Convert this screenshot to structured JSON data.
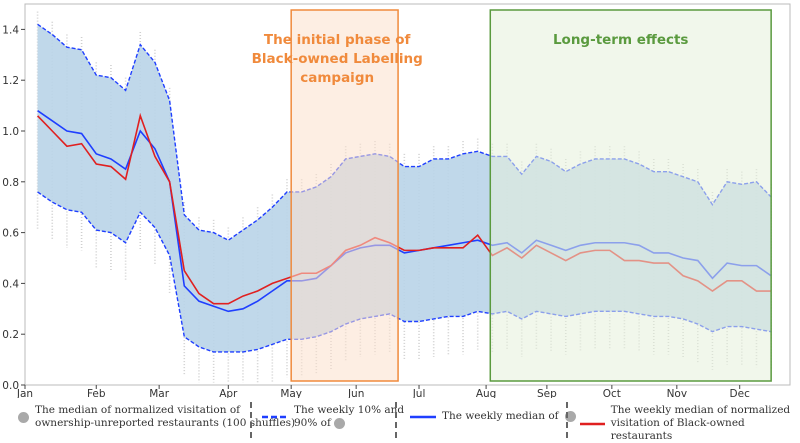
{
  "chart_data": {
    "type": "line",
    "title": "",
    "xlabel": "",
    "ylabel": "",
    "xlim": [
      0,
      365
    ],
    "ylim": [
      0,
      1.5
    ],
    "yticks": [
      0.0,
      0.2,
      0.4,
      0.6,
      0.8,
      1.0,
      1.2,
      1.4
    ],
    "ytick_labels": [
      "0.0",
      "0.2",
      "0.4",
      "0.6",
      "0.8",
      "1.0",
      "1.2",
      "1.4"
    ],
    "xticks": [
      0,
      34,
      64,
      97,
      127,
      158,
      188,
      220,
      249,
      280,
      311,
      341
    ],
    "xtick_labels": [
      "Jan",
      "Feb",
      "Mar",
      "Apr",
      "May",
      "Jun",
      "Jul",
      "Aug",
      "Sep",
      "Oct",
      "Nov",
      "Dec"
    ],
    "x_first_day": 6,
    "x_step_days": 7,
    "series": [
      {
        "name": "upper_90",
        "style": "dashed",
        "color": "#1f3fff",
        "values": [
          1.42,
          1.38,
          1.33,
          1.32,
          1.22,
          1.21,
          1.16,
          1.34,
          1.27,
          1.12,
          0.67,
          0.61,
          0.6,
          0.57,
          0.61,
          0.65,
          0.7,
          0.76,
          0.76,
          0.78,
          0.82,
          0.89,
          0.9,
          0.91,
          0.9,
          0.86,
          0.86,
          0.89,
          0.89,
          0.91,
          0.92,
          0.9,
          0.9,
          0.83,
          0.9,
          0.88,
          0.84,
          0.87,
          0.89,
          0.89,
          0.89,
          0.87,
          0.84,
          0.84,
          0.82,
          0.8,
          0.71,
          0.8,
          0.79,
          0.8,
          0.74
        ]
      },
      {
        "name": "The weekly median of",
        "style": "solid",
        "color": "#1f3fff",
        "values": [
          1.08,
          1.04,
          1.0,
          0.99,
          0.91,
          0.89,
          0.85,
          1.0,
          0.93,
          0.8,
          0.39,
          0.33,
          0.31,
          0.29,
          0.3,
          0.33,
          0.37,
          0.41,
          0.41,
          0.42,
          0.47,
          0.52,
          0.54,
          0.55,
          0.55,
          0.52,
          0.53,
          0.54,
          0.55,
          0.56,
          0.57,
          0.55,
          0.56,
          0.52,
          0.57,
          0.55,
          0.53,
          0.55,
          0.56,
          0.56,
          0.56,
          0.55,
          0.52,
          0.52,
          0.5,
          0.49,
          0.42,
          0.48,
          0.47,
          0.47,
          0.43
        ]
      },
      {
        "name": "The weekly median of normalized visitation of Black-owned restaurants",
        "style": "solid",
        "color": "#e02020",
        "values": [
          1.06,
          1.0,
          0.94,
          0.95,
          0.87,
          0.86,
          0.81,
          1.06,
          0.9,
          0.8,
          0.45,
          0.36,
          0.32,
          0.32,
          0.35,
          0.37,
          0.4,
          0.42,
          0.44,
          0.44,
          0.47,
          0.53,
          0.55,
          0.58,
          0.56,
          0.53,
          0.53,
          0.54,
          0.54,
          0.54,
          0.59,
          0.51,
          0.54,
          0.5,
          0.55,
          0.52,
          0.49,
          0.52,
          0.53,
          0.53,
          0.49,
          0.49,
          0.48,
          0.48,
          0.43,
          0.41,
          0.37,
          0.41,
          0.41,
          0.37,
          0.37
        ]
      },
      {
        "name": "lower_10",
        "style": "dashed",
        "color": "#1f3fff",
        "values": [
          0.76,
          0.72,
          0.69,
          0.68,
          0.61,
          0.6,
          0.56,
          0.68,
          0.62,
          0.51,
          0.19,
          0.15,
          0.13,
          0.13,
          0.13,
          0.14,
          0.16,
          0.18,
          0.18,
          0.19,
          0.21,
          0.24,
          0.26,
          0.27,
          0.28,
          0.25,
          0.25,
          0.26,
          0.27,
          0.27,
          0.29,
          0.28,
          0.29,
          0.26,
          0.29,
          0.28,
          0.27,
          0.28,
          0.29,
          0.29,
          0.29,
          0.28,
          0.27,
          0.27,
          0.26,
          0.24,
          0.21,
          0.23,
          0.23,
          0.22,
          0.21
        ]
      }
    ],
    "band_color": "#b9d4e8",
    "regions": [
      {
        "label_lines": [
          "The initial phase of",
          "Black-owned Labelling",
          "campaign"
        ],
        "x": [
          127,
          178
        ],
        "color": "#f08a3c",
        "fill": "#fbe0cc"
      },
      {
        "label_lines": [
          "Long-term effects"
        ],
        "x": [
          222,
          356
        ],
        "color": "#5a9a3e",
        "fill": "#e6f1da"
      }
    ]
  },
  "legend": {
    "item1_line1": "The median of normalized visitation of",
    "item1_line2": "ownership-unreported  restaurants (100 shuffles)",
    "item2_line1": "The weekly 10% and",
    "item2_line2": "90% of",
    "item3": "The weekly median of",
    "item4_line1": "The weekly median of normalized",
    "item4_line2": "visitation of Black-owned restaurants"
  }
}
